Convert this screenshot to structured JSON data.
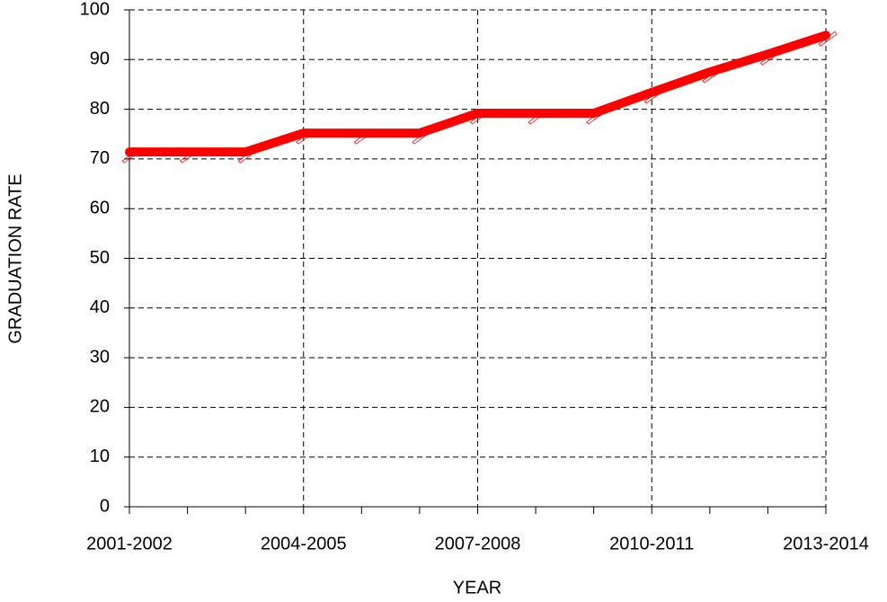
{
  "chart_data": {
    "type": "line",
    "x_label": "YEAR",
    "y_label": "GRADUATION RATE",
    "categories": [
      "2001-2002",
      null,
      null,
      "2004-2005",
      null,
      null,
      "2007-2008",
      null,
      null,
      "2010-2011",
      null,
      null,
      "2013-2014"
    ],
    "values": [
      71.4,
      71.4,
      71.4,
      75.2,
      75.2,
      75.2,
      79.2,
      79.2,
      79.2,
      83.4,
      87.5,
      91.1,
      94.9
    ],
    "color": "#ff0000",
    "ylim": [
      0,
      100
    ],
    "yticks": [
      0,
      10,
      20,
      30,
      40,
      50,
      60,
      70,
      80,
      90,
      100
    ],
    "grid": true
  }
}
